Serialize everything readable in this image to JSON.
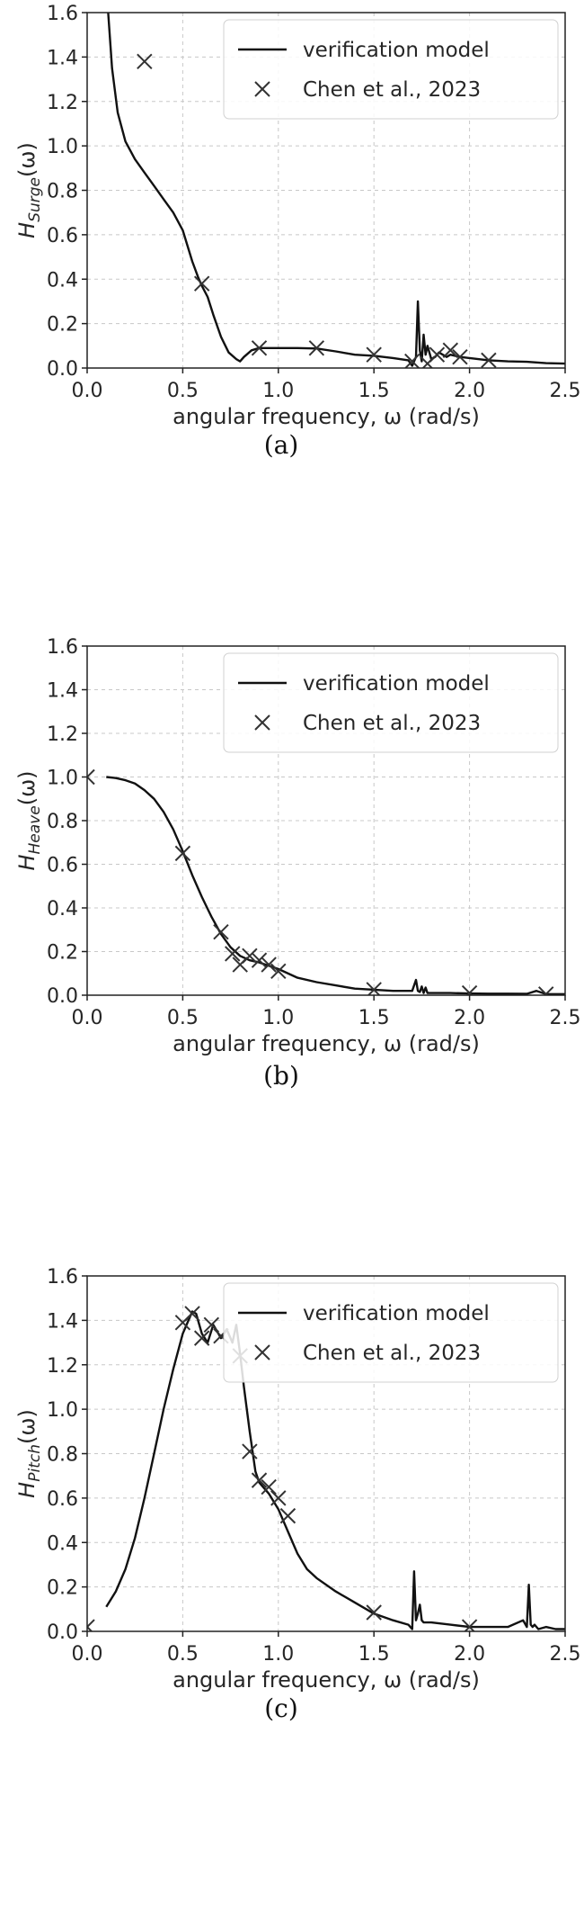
{
  "chart_data": [
    {
      "type": "line",
      "caption": "(a)",
      "xlabel": "angular frequency, ω (rad/s)",
      "ylabel": "H_Surge(ω)",
      "ylabel_main": "H",
      "ylabel_sub": "Surge",
      "ylabel_tail": "(ω)",
      "xlim": [
        0,
        2.5
      ],
      "ylim": [
        0,
        1.6
      ],
      "xticks": [
        "0.0",
        "0.5",
        "1.0",
        "1.5",
        "2.0",
        "2.5"
      ],
      "yticks": [
        "0.0",
        "0.2",
        "0.4",
        "0.6",
        "0.8",
        "1.0",
        "1.2",
        "1.4",
        "1.6"
      ],
      "grid": true,
      "legend": "top-right",
      "series": [
        {
          "name": "verification model",
          "kind": "line",
          "x": [
            0.11,
            0.13,
            0.16,
            0.2,
            0.25,
            0.3,
            0.35,
            0.4,
            0.45,
            0.5,
            0.55,
            0.58,
            0.6,
            0.63,
            0.66,
            0.7,
            0.74,
            0.78,
            0.8,
            0.82,
            0.86,
            0.9,
            0.95,
            1.0,
            1.1,
            1.2,
            1.3,
            1.4,
            1.5,
            1.6,
            1.68,
            1.7,
            1.72,
            1.73,
            1.74,
            1.75,
            1.76,
            1.77,
            1.78,
            1.8,
            1.82,
            1.84,
            1.86,
            1.88,
            1.9,
            1.95,
            2.0,
            2.1,
            2.2,
            2.3,
            2.4,
            2.5
          ],
          "y": [
            1.6,
            1.35,
            1.15,
            1.02,
            0.94,
            0.88,
            0.82,
            0.76,
            0.7,
            0.62,
            0.48,
            0.41,
            0.37,
            0.32,
            0.24,
            0.14,
            0.07,
            0.04,
            0.03,
            0.05,
            0.08,
            0.09,
            0.09,
            0.09,
            0.09,
            0.088,
            0.075,
            0.06,
            0.055,
            0.045,
            0.035,
            0.01,
            0.05,
            0.3,
            0.08,
            0.03,
            0.15,
            0.06,
            0.1,
            0.04,
            0.05,
            0.07,
            0.06,
            0.05,
            0.06,
            0.05,
            0.045,
            0.035,
            0.03,
            0.028,
            0.022,
            0.02
          ]
        },
        {
          "name": "Chen et al., 2023",
          "kind": "marker",
          "x": [
            0.3,
            0.6,
            0.9,
            1.2,
            1.5,
            1.7,
            1.78,
            1.83,
            1.9,
            1.95,
            2.1
          ],
          "y": [
            1.38,
            0.38,
            0.09,
            0.09,
            0.06,
            0.03,
            0.02,
            0.06,
            0.08,
            0.05,
            0.035
          ]
        }
      ]
    },
    {
      "type": "line",
      "caption": "(b)",
      "xlabel": "angular frequency, ω (rad/s)",
      "ylabel": "H_Heave(ω)",
      "ylabel_main": "H",
      "ylabel_sub": "Heave",
      "ylabel_tail": "(ω)",
      "xlim": [
        0,
        2.5
      ],
      "ylim": [
        0,
        1.6
      ],
      "xticks": [
        "0.0",
        "0.5",
        "1.0",
        "1.5",
        "2.0",
        "2.5"
      ],
      "yticks": [
        "0.0",
        "0.2",
        "0.4",
        "0.6",
        "0.8",
        "1.0",
        "1.2",
        "1.4",
        "1.6"
      ],
      "grid": true,
      "legend": "top-right",
      "series": [
        {
          "name": "verification model",
          "kind": "line",
          "x": [
            0.1,
            0.15,
            0.2,
            0.25,
            0.3,
            0.35,
            0.4,
            0.45,
            0.5,
            0.55,
            0.6,
            0.65,
            0.7,
            0.75,
            0.8,
            0.85,
            0.9,
            1.0,
            1.1,
            1.2,
            1.3,
            1.4,
            1.5,
            1.6,
            1.7,
            1.72,
            1.73,
            1.74,
            1.75,
            1.76,
            1.77,
            1.78,
            1.8,
            1.9,
            2.0,
            2.1,
            2.2,
            2.3,
            2.35,
            2.4,
            2.45,
            2.5
          ],
          "y": [
            1.0,
            0.995,
            0.985,
            0.97,
            0.94,
            0.9,
            0.84,
            0.76,
            0.66,
            0.55,
            0.45,
            0.36,
            0.28,
            0.22,
            0.18,
            0.16,
            0.15,
            0.12,
            0.08,
            0.06,
            0.045,
            0.03,
            0.025,
            0.02,
            0.02,
            0.07,
            0.02,
            0.015,
            0.04,
            0.01,
            0.035,
            0.01,
            0.01,
            0.01,
            0.008,
            0.007,
            0.007,
            0.006,
            0.02,
            0.005,
            0.005,
            0.005
          ]
        },
        {
          "name": "Chen et al., 2023",
          "kind": "marker",
          "x": [
            0.0,
            0.5,
            0.7,
            0.76,
            0.8,
            0.85,
            0.9,
            0.95,
            1.0,
            1.5,
            2.0,
            2.4
          ],
          "y": [
            1.0,
            0.65,
            0.29,
            0.19,
            0.14,
            0.18,
            0.16,
            0.14,
            0.11,
            0.025,
            0.01,
            0.005
          ]
        }
      ]
    },
    {
      "type": "line",
      "caption": "(c)",
      "xlabel": "angular frequency, ω (rad/s)",
      "ylabel": "H_Pitch(ω)",
      "ylabel_main": "H",
      "ylabel_sub": "Pitch",
      "ylabel_tail": "(ω)",
      "xlim": [
        0,
        2.5
      ],
      "ylim": [
        0,
        1.6
      ],
      "xticks": [
        "0.0",
        "0.5",
        "1.0",
        "1.5",
        "2.0",
        "2.5"
      ],
      "yticks": [
        "0.0",
        "0.2",
        "0.4",
        "0.6",
        "0.8",
        "1.0",
        "1.2",
        "1.4",
        "1.6"
      ],
      "grid": true,
      "legend": "top-right",
      "series": [
        {
          "name": "verification model",
          "kind": "line",
          "x": [
            0.1,
            0.15,
            0.2,
            0.25,
            0.3,
            0.35,
            0.4,
            0.45,
            0.5,
            0.55,
            0.57,
            0.6,
            0.63,
            0.66,
            0.7,
            0.73,
            0.76,
            0.78,
            0.8,
            0.82,
            0.85,
            0.88,
            0.9,
            0.95,
            1.0,
            1.05,
            1.1,
            1.15,
            1.2,
            1.3,
            1.4,
            1.5,
            1.6,
            1.68,
            1.7,
            1.71,
            1.72,
            1.73,
            1.74,
            1.75,
            1.76,
            1.78,
            1.8,
            1.9,
            2.0,
            2.1,
            2.2,
            2.28,
            2.3,
            2.31,
            2.32,
            2.33,
            2.34,
            2.36,
            2.4,
            2.45,
            2.5
          ],
          "y": [
            0.11,
            0.18,
            0.28,
            0.42,
            0.6,
            0.8,
            1.0,
            1.18,
            1.34,
            1.44,
            1.43,
            1.34,
            1.3,
            1.38,
            1.32,
            1.36,
            1.3,
            1.38,
            1.25,
            1.1,
            0.9,
            0.72,
            0.67,
            0.62,
            0.55,
            0.45,
            0.35,
            0.28,
            0.24,
            0.18,
            0.13,
            0.08,
            0.05,
            0.03,
            0.01,
            0.27,
            0.05,
            0.08,
            0.12,
            0.05,
            0.04,
            0.04,
            0.04,
            0.03,
            0.02,
            0.02,
            0.02,
            0.05,
            0.02,
            0.21,
            0.03,
            0.02,
            0.03,
            0.01,
            0.02,
            0.01,
            0.01
          ]
        },
        {
          "name": "Chen et al., 2023",
          "kind": "marker",
          "x": [
            0.0,
            0.5,
            0.55,
            0.6,
            0.65,
            0.7,
            0.8,
            0.85,
            0.9,
            0.95,
            1.0,
            1.05,
            1.5,
            2.0
          ],
          "y": [
            0.02,
            1.39,
            1.43,
            1.32,
            1.38,
            1.33,
            1.24,
            0.81,
            0.68,
            0.65,
            0.6,
            0.52,
            0.085,
            0.02
          ]
        }
      ]
    }
  ]
}
